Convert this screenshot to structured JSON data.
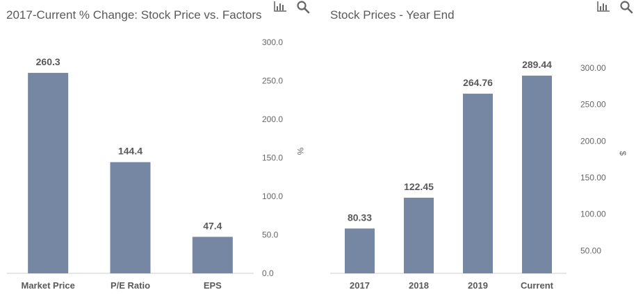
{
  "colors": {
    "bar": "#7687a4",
    "title": "#595959",
    "label": "#595959",
    "tick": "#666666",
    "icon": "#666666",
    "axis": "#cccccc"
  },
  "icons": [
    "bar-chart-icon",
    "search-icon"
  ],
  "chart_data": [
    {
      "type": "bar",
      "title": "2017-Current % Change: Stock Price vs. Factors",
      "categories": [
        "Market Price",
        "P/E Ratio",
        "EPS"
      ],
      "values": [
        260.3,
        144.4,
        47.4
      ],
      "value_labels": [
        "260.3",
        "144.4",
        "47.4"
      ],
      "ylabel": "%",
      "ylim": [
        0,
        300
      ],
      "yticks": [
        0,
        50,
        100,
        150,
        200,
        250,
        300
      ],
      "ytick_labels": [
        "0.0",
        "50.0",
        "100.0",
        "150.0",
        "200.0",
        "250.0",
        "300.0"
      ],
      "y_axis_position": "right",
      "grid": false,
      "legend": "none"
    },
    {
      "type": "bar",
      "title": "Stock Prices - Year End",
      "categories": [
        "2017",
        "2018",
        "2019",
        "Current"
      ],
      "values": [
        80.33,
        122.45,
        264.76,
        289.44
      ],
      "value_labels": [
        "80.33",
        "122.45",
        "264.76",
        "289.44"
      ],
      "ylabel": "$",
      "ylim": [
        19,
        317
      ],
      "yticks": [
        50,
        100,
        150,
        200,
        250,
        300
      ],
      "ytick_labels": [
        "50.00",
        "100.00",
        "150.00",
        "200.00",
        "250.00",
        "300.00"
      ],
      "y_axis_position": "right",
      "grid": false,
      "legend": "none"
    }
  ]
}
